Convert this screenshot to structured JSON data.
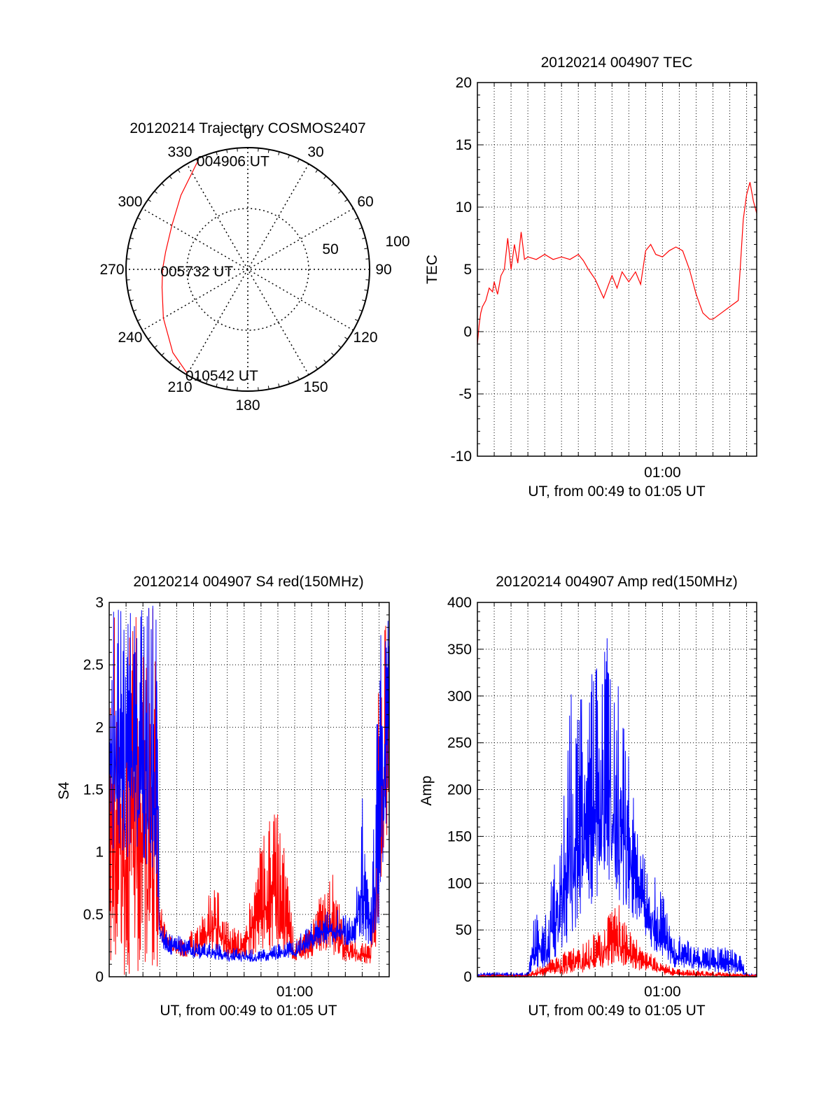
{
  "colors": {
    "red": "#ff0000",
    "blue": "#0000ff",
    "axis": "#000000",
    "grid": "#000000",
    "background": "#ffffff"
  },
  "chart_data": [
    {
      "id": "trajectory",
      "type": "polar",
      "title": "20120214 Trajectory COSMOS2407",
      "angle_labels": [
        "0",
        "30",
        "60",
        "90",
        "120",
        "150",
        "180",
        "210",
        "240",
        "270",
        "300",
        "330"
      ],
      "radial_labels": [
        "50",
        "100"
      ],
      "radial_ring_values": [
        50
      ],
      "radial_max": 100,
      "track_color": "red",
      "track": [
        {
          "az": 336,
          "r": 99
        },
        {
          "az": 318,
          "r": 82
        },
        {
          "az": 300,
          "r": 72
        },
        {
          "az": 282,
          "r": 69
        },
        {
          "az": 270,
          "r": 70
        },
        {
          "az": 258,
          "r": 72
        },
        {
          "az": 240,
          "r": 80
        },
        {
          "az": 222,
          "r": 92
        },
        {
          "az": 210,
          "r": 99
        }
      ],
      "annotations": [
        {
          "text": "004906 UT",
          "az": 336,
          "r": 99
        },
        {
          "text": "005732 UT",
          "az": 270,
          "r": 70
        },
        {
          "text": "010542 UT",
          "az": 210,
          "r": 99
        }
      ]
    },
    {
      "id": "tec",
      "type": "line",
      "title": "20120214 004907 TEC",
      "xlabel": "UT, from 00:49 to 01:05 UT",
      "ylabel": "TEC",
      "xlim": [
        0,
        16.6
      ],
      "ylim": [
        -10,
        20
      ],
      "yticks": [
        "20",
        "15",
        "10",
        "5",
        "0",
        "-5",
        "-10"
      ],
      "xtick_label": "01:00",
      "xtick_pos": 11.0,
      "grid": true,
      "series": [
        {
          "color": "red",
          "x": [
            0,
            0.1,
            0.2,
            0.3,
            0.5,
            0.7,
            0.9,
            1.0,
            1.2,
            1.4,
            1.6,
            1.8,
            2.0,
            2.2,
            2.4,
            2.6,
            2.8,
            3.0,
            3.5,
            4.0,
            4.5,
            5.0,
            5.5,
            6.0,
            6.3,
            6.6,
            7.0,
            7.5,
            7.8,
            8.0,
            8.3,
            8.6,
            9.0,
            9.4,
            9.7,
            10.0,
            10.3,
            10.6,
            11.0,
            11.4,
            11.8,
            12.2,
            12.6,
            13.0,
            13.4,
            13.8,
            14.0,
            14.5,
            15.0,
            15.5,
            15.8,
            16.0,
            16.2,
            16.4,
            16.6
          ],
          "y": [
            -1,
            0.5,
            1.5,
            2,
            2.5,
            3.5,
            3.2,
            4,
            3,
            4.5,
            5,
            7.5,
            5,
            7,
            5.5,
            8,
            5.8,
            6,
            5.8,
            6.2,
            5.8,
            6,
            5.8,
            6.2,
            5.7,
            5,
            4.2,
            2.7,
            3.8,
            4.5,
            3.5,
            4.8,
            4,
            4.8,
            3.8,
            6.5,
            7,
            6.2,
            6,
            6.5,
            6.8,
            6.5,
            5,
            3,
            1.5,
            1,
            1,
            1.5,
            2,
            2.5,
            9,
            11,
            12,
            10.5,
            9.5
          ]
        }
      ]
    },
    {
      "id": "s4",
      "type": "line",
      "title": "20120214 004907 S4 red(150MHz)",
      "xlabel": "UT, from 00:49 to 01:05 UT",
      "ylabel": "S4",
      "xlim": [
        0,
        16.6
      ],
      "ylim": [
        0,
        3
      ],
      "yticks": [
        "3",
        "2.5",
        "2",
        "1.5",
        "1",
        "0.5",
        "0"
      ],
      "xtick_label": "01:00",
      "xtick_pos": 11.0,
      "grid": true,
      "series": [
        {
          "color": "red",
          "envelope": [
            {
              "x": 0,
              "lo": 0,
              "hi": 3
            },
            {
              "x": 2.8,
              "lo": 0,
              "hi": 3
            },
            {
              "x": 3.0,
              "lo": 0.3,
              "hi": 0.6
            },
            {
              "x": 3.5,
              "lo": 0.2,
              "hi": 0.35
            },
            {
              "x": 4.5,
              "lo": 0.15,
              "hi": 0.3
            },
            {
              "x": 5.5,
              "lo": 0.15,
              "hi": 0.5
            },
            {
              "x": 6.3,
              "lo": 0.2,
              "hi": 0.85
            },
            {
              "x": 7.0,
              "lo": 0.15,
              "hi": 0.45
            },
            {
              "x": 8.0,
              "lo": 0.15,
              "hi": 0.35
            },
            {
              "x": 9.0,
              "lo": 0.2,
              "hi": 1.1
            },
            {
              "x": 10.0,
              "lo": 0.2,
              "hi": 1.45
            },
            {
              "x": 11.0,
              "lo": 0.12,
              "hi": 0.3
            },
            {
              "x": 12.0,
              "lo": 0.15,
              "hi": 0.4
            },
            {
              "x": 13.0,
              "lo": 0.2,
              "hi": 1.0
            },
            {
              "x": 14.0,
              "lo": 0.12,
              "hi": 0.35
            },
            {
              "x": 15.5,
              "lo": 0.1,
              "hi": 0.25
            },
            {
              "x": 16.0,
              "lo": 0.3,
              "hi": 2.5
            },
            {
              "x": 16.6,
              "lo": 1.3,
              "hi": 3
            }
          ]
        },
        {
          "color": "blue",
          "envelope": [
            {
              "x": 0,
              "lo": 1.0,
              "hi": 3
            },
            {
              "x": 2.8,
              "lo": 0.8,
              "hi": 3
            },
            {
              "x": 3.0,
              "lo": 0.25,
              "hi": 0.5
            },
            {
              "x": 3.5,
              "lo": 0.18,
              "hi": 0.35
            },
            {
              "x": 5.0,
              "lo": 0.15,
              "hi": 0.3
            },
            {
              "x": 7.0,
              "lo": 0.12,
              "hi": 0.25
            },
            {
              "x": 9.0,
              "lo": 0.12,
              "hi": 0.22
            },
            {
              "x": 11.0,
              "lo": 0.15,
              "hi": 0.3
            },
            {
              "x": 12.5,
              "lo": 0.25,
              "hi": 0.5
            },
            {
              "x": 13.5,
              "lo": 0.25,
              "hi": 0.55
            },
            {
              "x": 14.5,
              "lo": 0.25,
              "hi": 0.45
            },
            {
              "x": 15.0,
              "lo": 0.3,
              "hi": 1.5
            },
            {
              "x": 15.5,
              "lo": 0.25,
              "hi": 0.5
            },
            {
              "x": 16.0,
              "lo": 0.3,
              "hi": 3
            },
            {
              "x": 16.6,
              "lo": 1.5,
              "hi": 3
            }
          ]
        }
      ]
    },
    {
      "id": "amp",
      "type": "line",
      "title": "20120214 004907 Amp red(150MHz)",
      "xlabel": "UT, from 00:49 to 01:05 UT",
      "ylabel": "Amp",
      "xlim": [
        0,
        16.6
      ],
      "ylim": [
        0,
        400
      ],
      "yticks": [
        "400",
        "350",
        "300",
        "250",
        "200",
        "150",
        "100",
        "50",
        "0"
      ],
      "xtick_label": "01:00",
      "xtick_pos": 11.0,
      "grid": true,
      "series": [
        {
          "color": "blue",
          "envelope": [
            {
              "x": 0,
              "lo": 0,
              "hi": 5
            },
            {
              "x": 3.0,
              "lo": 0,
              "hi": 5
            },
            {
              "x": 3.3,
              "lo": 5,
              "hi": 60
            },
            {
              "x": 4.0,
              "lo": 10,
              "hi": 80
            },
            {
              "x": 4.8,
              "lo": 20,
              "hi": 150
            },
            {
              "x": 5.5,
              "lo": 40,
              "hi": 300
            },
            {
              "x": 6.2,
              "lo": 60,
              "hi": 320
            },
            {
              "x": 7.0,
              "lo": 80,
              "hi": 330
            },
            {
              "x": 7.8,
              "lo": 100,
              "hi": 370
            },
            {
              "x": 8.5,
              "lo": 80,
              "hi": 300
            },
            {
              "x": 9.3,
              "lo": 60,
              "hi": 200
            },
            {
              "x": 10.0,
              "lo": 40,
              "hi": 120
            },
            {
              "x": 10.8,
              "lo": 20,
              "hi": 105
            },
            {
              "x": 11.5,
              "lo": 10,
              "hi": 50
            },
            {
              "x": 13.0,
              "lo": 5,
              "hi": 35
            },
            {
              "x": 15.5,
              "lo": 2,
              "hi": 30
            },
            {
              "x": 16.0,
              "lo": 0,
              "hi": 5
            },
            {
              "x": 16.6,
              "lo": 0,
              "hi": 3
            }
          ]
        },
        {
          "color": "red",
          "envelope": [
            {
              "x": 0,
              "lo": 0,
              "hi": 2
            },
            {
              "x": 3.0,
              "lo": 0,
              "hi": 2
            },
            {
              "x": 3.5,
              "lo": 0,
              "hi": 10
            },
            {
              "x": 5.0,
              "lo": 2,
              "hi": 25
            },
            {
              "x": 6.5,
              "lo": 5,
              "hi": 40
            },
            {
              "x": 7.5,
              "lo": 10,
              "hi": 55
            },
            {
              "x": 8.3,
              "lo": 10,
              "hi": 85
            },
            {
              "x": 9.0,
              "lo": 8,
              "hi": 50
            },
            {
              "x": 10.0,
              "lo": 5,
              "hi": 30
            },
            {
              "x": 11.0,
              "lo": 2,
              "hi": 15
            },
            {
              "x": 12.0,
              "lo": 0,
              "hi": 8
            },
            {
              "x": 14.5,
              "lo": 0,
              "hi": 5
            },
            {
              "x": 16.6,
              "lo": 0,
              "hi": 2
            }
          ]
        }
      ]
    }
  ]
}
